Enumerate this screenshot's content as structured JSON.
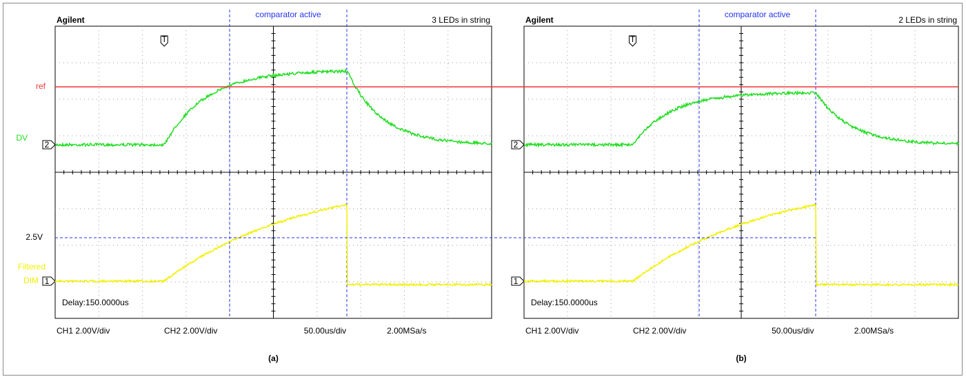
{
  "panels": [
    {
      "brand": "Agilent",
      "marker": "comparator active",
      "caption": "3 LEDs in string",
      "trigger": "T",
      "ch2_marker": "2",
      "ch1_marker": "1",
      "delay": "Delay:150.0000us",
      "settings": [
        "CH1 2.00V/div",
        "CH2 2.00V/div",
        "50.00us/div",
        "2.00MSa/s"
      ],
      "label": "(a)"
    },
    {
      "brand": "Agilent",
      "marker": "comparator active",
      "caption": "2 LEDs in string",
      "trigger": "T",
      "ch2_marker": "2",
      "ch1_marker": "1",
      "delay": "Delay:150.0000us",
      "settings": [
        "CH1 2.00V/div",
        "CH2 2.00V/div",
        "50.00us/div",
        "2.00MSa/s"
      ],
      "label": "(b)"
    }
  ],
  "side_labels": {
    "ref": "ref",
    "dv": "DV",
    "level": "2.5V",
    "filtered": "Filtered",
    "dim": "DIM"
  }
}
